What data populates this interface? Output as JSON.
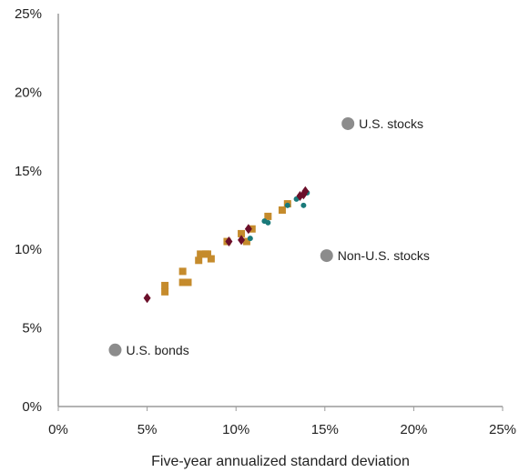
{
  "chart_data": {
    "type": "scatter",
    "xlabel": "Five-year annualized standard deviation",
    "ylabel": "",
    "xlim": [
      0,
      25
    ],
    "ylim": [
      0,
      25
    ],
    "x_ticks": [
      "0%",
      "5%",
      "10%",
      "15%",
      "20%",
      "25%"
    ],
    "y_ticks": [
      "0%",
      "5%",
      "10%",
      "15%",
      "20%",
      "25%"
    ],
    "grid": false,
    "colors": {
      "benchmark": "#8c8c8c",
      "gold": "#c58b2c",
      "teal": "#1a7a7a",
      "maroon": "#6b0f2a",
      "axis": "#9a9a9a"
    },
    "benchmarks": [
      {
        "label": "U.S. stocks",
        "x": 16.3,
        "y": 18.0
      },
      {
        "label": "Non-U.S. stocks",
        "x": 15.1,
        "y": 9.6
      },
      {
        "label": "U.S. bonds",
        "x": 3.2,
        "y": 3.6
      }
    ],
    "series": [
      {
        "marker": "square",
        "color_key": "gold",
        "points": [
          [
            6.0,
            7.3
          ],
          [
            6.0,
            7.7
          ],
          [
            7.0,
            7.9
          ],
          [
            7.0,
            8.6
          ],
          [
            7.3,
            7.9
          ],
          [
            7.9,
            9.3
          ],
          [
            8.0,
            9.7
          ],
          [
            8.3,
            9.7
          ],
          [
            8.6,
            9.4
          ],
          [
            8.4,
            9.7
          ],
          [
            9.5,
            10.5
          ],
          [
            10.3,
            11.0
          ],
          [
            10.6,
            10.5
          ],
          [
            10.9,
            11.3
          ],
          [
            11.8,
            12.1
          ],
          [
            12.6,
            12.5
          ],
          [
            12.9,
            12.9
          ]
        ]
      },
      {
        "marker": "circle",
        "color_key": "teal",
        "points": [
          [
            10.8,
            10.7
          ],
          [
            11.6,
            11.8
          ],
          [
            11.8,
            11.7
          ],
          [
            12.9,
            12.8
          ],
          [
            13.4,
            13.2
          ],
          [
            13.6,
            13.4
          ],
          [
            13.8,
            12.8
          ],
          [
            14.0,
            13.6
          ]
        ]
      },
      {
        "marker": "diamond",
        "color_key": "maroon",
        "points": [
          [
            5.0,
            6.9
          ],
          [
            9.6,
            10.5
          ],
          [
            10.3,
            10.6
          ],
          [
            10.7,
            11.3
          ],
          [
            13.6,
            13.4
          ],
          [
            13.8,
            13.5
          ],
          [
            13.9,
            13.7
          ]
        ]
      }
    ]
  }
}
